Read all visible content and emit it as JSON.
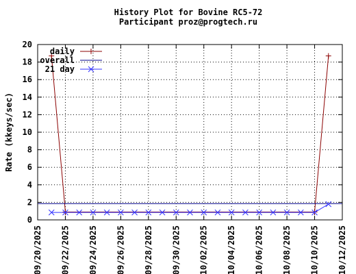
{
  "chart_data": {
    "type": "line",
    "title": "History Plot for Bovine RC5-72",
    "subtitle": "Participant proz@progtech.ru",
    "xlabel": "",
    "ylabel": "Rate (kkeys/sec)",
    "ylim": [
      0,
      20
    ],
    "y_ticks": [
      "0",
      "2",
      "4",
      "6",
      "8",
      "10",
      "12",
      "14",
      "16",
      "18",
      "20"
    ],
    "xlim": [
      "2025-09-20",
      "2025-10-12"
    ],
    "x_ticks": [
      "09/20/2025",
      "09/22/2025",
      "09/24/2025",
      "09/26/2025",
      "09/28/2025",
      "09/30/2025",
      "10/02/2025",
      "10/04/2025",
      "10/06/2025",
      "10/08/2025",
      "10/10/2025",
      "10/12/2025"
    ],
    "grid": true,
    "legend_position": "top-left",
    "series": [
      {
        "name": "daily",
        "color": "#8b0000",
        "marker": "plus",
        "points": [
          {
            "x": "2025-09-21",
            "y": 18.7
          },
          {
            "x": "2025-09-22",
            "y": 0.9
          },
          {
            "x": "2025-10-10",
            "y": 0.9
          },
          {
            "x": "2025-10-11",
            "y": 18.7
          }
        ]
      },
      {
        "name": "overall",
        "color": "#00008b",
        "marker": "none",
        "points": [
          {
            "x": "2025-09-20",
            "y": 1.85
          },
          {
            "x": "2025-10-12",
            "y": 1.85
          }
        ]
      },
      {
        "name": "21 day",
        "color": "#3333ff",
        "marker": "x",
        "points": [
          {
            "x": "2025-09-21",
            "y": 0.85
          },
          {
            "x": "2025-09-22",
            "y": 0.85
          },
          {
            "x": "2025-09-23",
            "y": 0.85
          },
          {
            "x": "2025-09-24",
            "y": 0.85
          },
          {
            "x": "2025-09-25",
            "y": 0.85
          },
          {
            "x": "2025-09-26",
            "y": 0.85
          },
          {
            "x": "2025-09-27",
            "y": 0.85
          },
          {
            "x": "2025-09-28",
            "y": 0.85
          },
          {
            "x": "2025-09-29",
            "y": 0.85
          },
          {
            "x": "2025-09-30",
            "y": 0.85
          },
          {
            "x": "2025-10-01",
            "y": 0.85
          },
          {
            "x": "2025-10-02",
            "y": 0.85
          },
          {
            "x": "2025-10-03",
            "y": 0.85
          },
          {
            "x": "2025-10-04",
            "y": 0.85
          },
          {
            "x": "2025-10-05",
            "y": 0.85
          },
          {
            "x": "2025-10-06",
            "y": 0.85
          },
          {
            "x": "2025-10-07",
            "y": 0.85
          },
          {
            "x": "2025-10-08",
            "y": 0.85
          },
          {
            "x": "2025-10-09",
            "y": 0.85
          },
          {
            "x": "2025-10-10",
            "y": 0.85
          },
          {
            "x": "2025-10-11",
            "y": 1.8
          }
        ]
      }
    ]
  }
}
